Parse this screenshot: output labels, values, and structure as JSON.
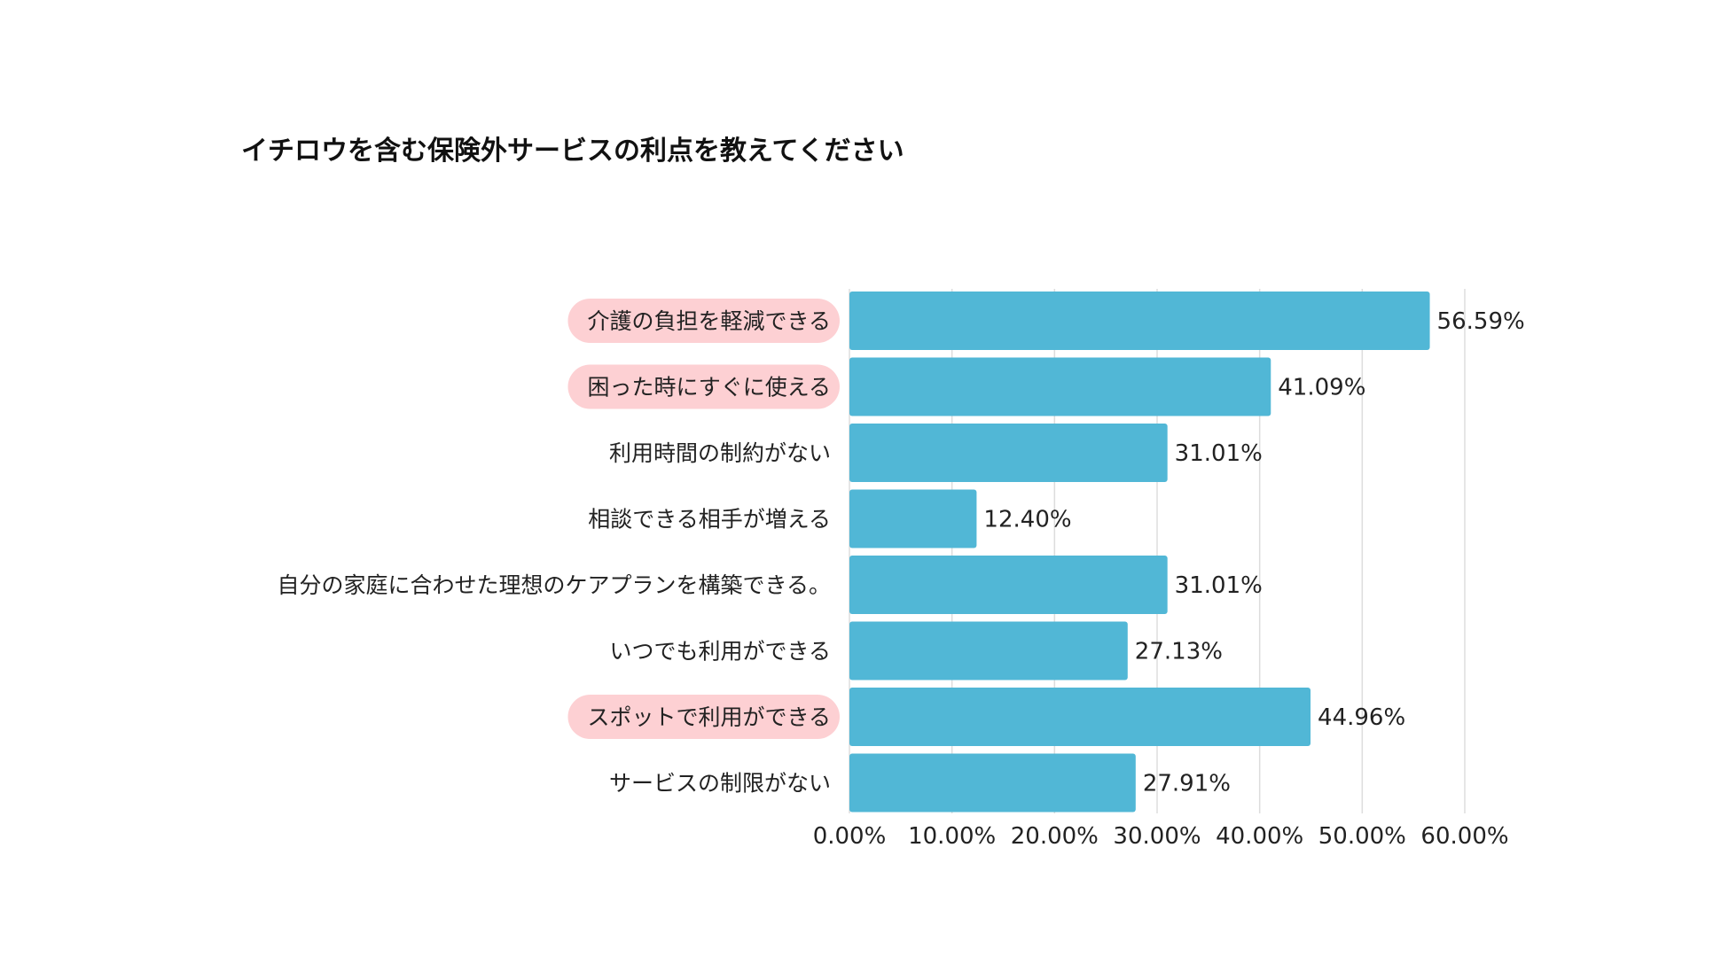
{
  "chart_data": {
    "type": "bar",
    "orientation": "horizontal",
    "title": "イチロウを含む保険外サービスの利点を教えてください",
    "categories": [
      "介護の負担を軽減できる",
      "困った時にすぐに使える",
      "利用時間の制約がない",
      "相談できる相手が増える",
      "自分の家庭に合わせた理想のケアプランを構築できる。",
      "いつでも利用ができる",
      "スポットで利用ができる",
      "サービスの制限がない"
    ],
    "values": [
      56.59,
      41.09,
      31.01,
      12.4,
      31.01,
      27.13,
      44.96,
      27.91
    ],
    "value_labels": [
      "56.59%",
      "41.09%",
      "31.01%",
      "12.40%",
      "31.01%",
      "27.13%",
      "44.96%",
      "27.91%"
    ],
    "highlighted": [
      true,
      true,
      false,
      false,
      false,
      false,
      true,
      false
    ],
    "xlim": [
      0,
      60
    ],
    "ticks": [
      0,
      10,
      20,
      30,
      40,
      50,
      60
    ],
    "tick_labels": [
      "0.00%",
      "10.00%",
      "20.00%",
      "30.00%",
      "40.00%",
      "50.00%",
      "60.00%"
    ],
    "grid": true,
    "colors": {
      "bar": "#51b7d6",
      "highlight": "#fdd0d3",
      "grid": "#dddddd"
    }
  }
}
